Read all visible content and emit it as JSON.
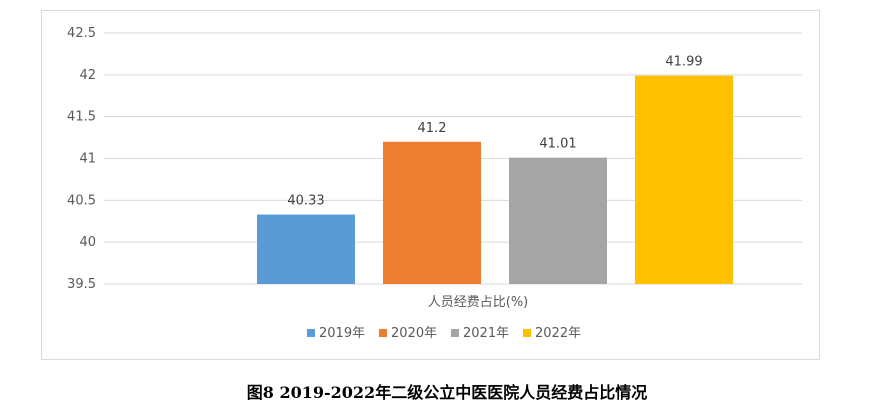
{
  "caption": "图8 2019-2022年二级公立中医医院人员经费占比情况",
  "chart_data": {
    "type": "bar",
    "categories": [
      "人员经费占比(%)"
    ],
    "series": [
      {
        "name": "2019年",
        "values": [
          40.33
        ],
        "color": "#5b9bd5",
        "label": "40.33"
      },
      {
        "name": "2020年",
        "values": [
          41.2
        ],
        "color": "#ed7d31",
        "label": "41.2"
      },
      {
        "name": "2021年",
        "values": [
          41.01
        ],
        "color": "#a5a5a5",
        "label": "41.01"
      },
      {
        "name": "2022年",
        "values": [
          41.99
        ],
        "color": "#ffc000",
        "label": "41.99"
      }
    ],
    "ylim": [
      39.5,
      42.5
    ],
    "yticks": [
      "42.5",
      "42",
      "41.5",
      "41",
      "40.5",
      "40",
      "39.5"
    ],
    "grid": true,
    "legend_position": "bottom"
  }
}
